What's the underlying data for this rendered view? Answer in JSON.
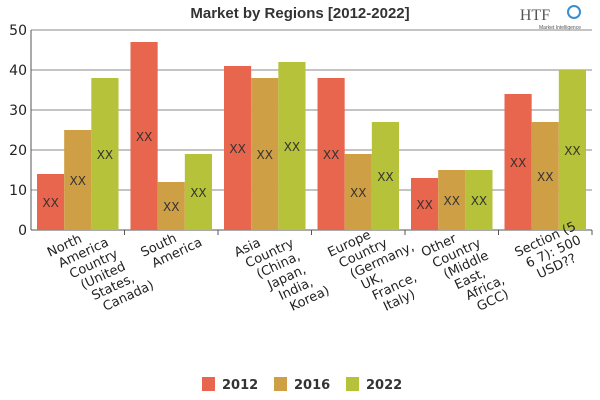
{
  "chart_data": {
    "type": "bar",
    "title": "Market by Regions [2012-2022]",
    "categories": [
      [
        "North",
        "America",
        "Country",
        "(United",
        "States,",
        "Canada)"
      ],
      [
        "South",
        "America"
      ],
      [
        "Asia",
        "Country",
        "(China,",
        "Japan,",
        "India,",
        "Korea)"
      ],
      [
        "Europe",
        "Country",
        "(Germany,",
        "UK,",
        "France,",
        "Italy)"
      ],
      [
        "Other",
        "Country",
        "(Middle",
        "East,",
        "Africa,",
        "GCC)"
      ],
      [
        "Section (5",
        "6 7): 500",
        "USD??"
      ]
    ],
    "series": [
      {
        "name": "2012",
        "color": "#e8664d",
        "values": [
          14,
          47,
          41,
          38,
          13,
          34
        ]
      },
      {
        "name": "2016",
        "color": "#cf9f45",
        "values": [
          25,
          12,
          38,
          19,
          15,
          27
        ]
      },
      {
        "name": "2022",
        "color": "#b5c23a",
        "values": [
          38,
          19,
          42,
          27,
          15,
          40
        ]
      }
    ],
    "data_label": "XX",
    "ylim": [
      0,
      50
    ],
    "yticks": [
      0,
      10,
      20,
      30,
      40,
      50
    ],
    "grid": true,
    "legend_position": "bottom"
  },
  "logo": {
    "text": "HTF",
    "subtext": "Market Intelligence"
  }
}
